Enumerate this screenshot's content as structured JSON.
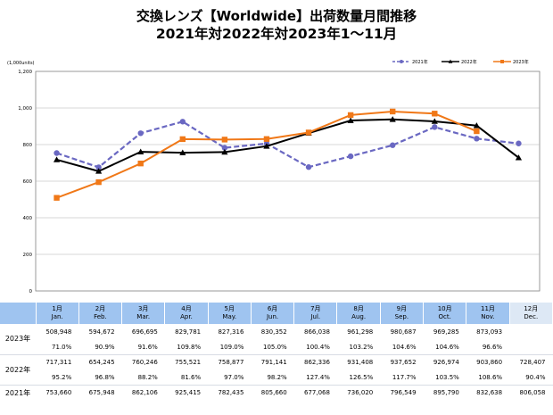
{
  "titles": {
    "line1": "交換レンズ【Worldwide】出荷数量月間推移",
    "line2": "2021年対2022年対2023年1～11月"
  },
  "chart_data": {
    "type": "line",
    "unit_label": "(1,000units)",
    "ylim": [
      0,
      1200
    ],
    "yticks": [
      0,
      200,
      400,
      600,
      800,
      1000,
      1200
    ],
    "ytick_labels": [
      "0",
      "200",
      "400",
      "600",
      "800",
      "1,000",
      "1,200"
    ],
    "grid": true,
    "legend_position": "top-right",
    "categories": [
      "1月",
      "2月",
      "3月",
      "4月",
      "5月",
      "6月",
      "7月",
      "8月",
      "9月",
      "10月",
      "11月",
      "12月"
    ],
    "series": [
      {
        "name": "2021年",
        "color": "#6a68c2",
        "dash": true,
        "marker": "circle",
        "values": [
          753.66,
          675.948,
          862.106,
          925.415,
          782.435,
          805.66,
          677.068,
          736.02,
          796.549,
          895.79,
          832.638,
          806.058
        ]
      },
      {
        "name": "2022年",
        "color": "#000000",
        "dash": false,
        "marker": "triangle",
        "values": [
          717.311,
          654.245,
          760.246,
          755.521,
          758.877,
          791.141,
          862.336,
          931.408,
          937.652,
          926.974,
          903.86,
          728.407
        ]
      },
      {
        "name": "2023年",
        "color": "#f07818",
        "dash": false,
        "marker": "square",
        "values": [
          508.948,
          594.672,
          696.695,
          829.781,
          827.316,
          830.352,
          866.038,
          961.298,
          980.687,
          969.285,
          873.093,
          null
        ]
      }
    ]
  },
  "table": {
    "months": [
      {
        "jp": "1月",
        "en": "Jan."
      },
      {
        "jp": "2月",
        "en": "Feb."
      },
      {
        "jp": "3月",
        "en": "Mar."
      },
      {
        "jp": "4月",
        "en": "Apr."
      },
      {
        "jp": "5月",
        "en": "May."
      },
      {
        "jp": "6月",
        "en": "Jun."
      },
      {
        "jp": "7月",
        "en": "Jul."
      },
      {
        "jp": "8月",
        "en": "Aug."
      },
      {
        "jp": "9月",
        "en": "Sep."
      },
      {
        "jp": "10月",
        "en": "Oct."
      },
      {
        "jp": "11月",
        "en": "Nov."
      },
      {
        "jp": "12月",
        "en": "Dec."
      }
    ],
    "rows": [
      {
        "label": "2023年",
        "values": [
          "508,948",
          "594,672",
          "696,695",
          "829,781",
          "827,316",
          "830,352",
          "866,038",
          "961,298",
          "980,687",
          "969,285",
          "873,093",
          ""
        ],
        "pct": [
          "71.0%",
          "90.9%",
          "91.6%",
          "109.8%",
          "109.0%",
          "105.0%",
          "100.4%",
          "103.2%",
          "104.6%",
          "104.6%",
          "96.6%",
          ""
        ]
      },
      {
        "label": "2022年",
        "values": [
          "717,311",
          "654,245",
          "760,246",
          "755,521",
          "758,877",
          "791,141",
          "862,336",
          "931,408",
          "937,652",
          "926,974",
          "903,860",
          "728,407"
        ],
        "pct": [
          "95.2%",
          "96.8%",
          "88.2%",
          "81.6%",
          "97.0%",
          "98.2%",
          "127.4%",
          "126.5%",
          "117.7%",
          "103.5%",
          "108.6%",
          "90.4%"
        ]
      },
      {
        "label": "2021年",
        "values": [
          "753,660",
          "675,948",
          "862,106",
          "925,415",
          "782,435",
          "805,660",
          "677,068",
          "736,020",
          "796,549",
          "895,790",
          "832,638",
          "806,058"
        ],
        "pct": null
      }
    ]
  }
}
